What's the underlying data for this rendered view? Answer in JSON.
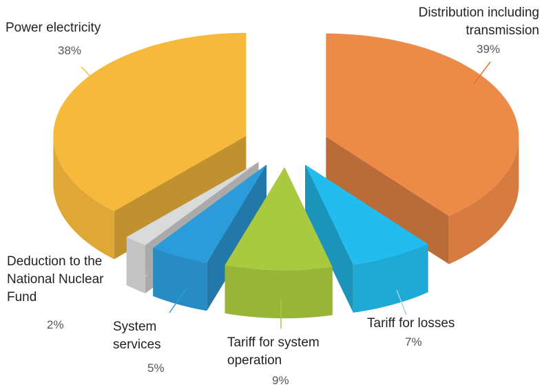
{
  "chart_data": {
    "type": "pie",
    "categories": [
      "Distribution including transmission",
      "Tariff for losses",
      "Tariff for system operation",
      "System services",
      "Deduction to the National Nuclear Fund",
      "Power electricity"
    ],
    "values": [
      39,
      7,
      9,
      5,
      2,
      38
    ],
    "value_labels": [
      "39%",
      "7%",
      "9%",
      "5%",
      "2%",
      "38%"
    ],
    "colors": [
      "#ee8a48",
      "#22bdee",
      "#a9c93e",
      "#2b9bd9",
      "#dadada",
      "#f7b93c"
    ]
  }
}
